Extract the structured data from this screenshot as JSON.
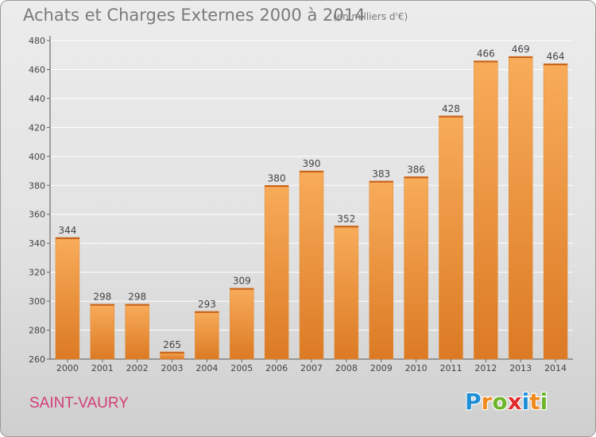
{
  "header": {
    "title": "Achats et Charges Externes 2000 à 2014",
    "unit": "(en milliers d'€)"
  },
  "footer": {
    "commune": "SAINT-VAURY",
    "logo_letters": [
      "P",
      "r",
      "o",
      "x",
      "i",
      "t",
      "i"
    ],
    "logo_colors": [
      "#1e8fd6",
      "#f08a1c",
      "#6fb52c",
      "#e02d2d",
      "#1e8fd6",
      "#f08a1c",
      "#6fb52c"
    ]
  },
  "colors": {
    "bar_light": "#f8ac5a",
    "bar_dark": "#dc7a24",
    "axis_text": "#444444",
    "grid": "#ffffff",
    "commune": "#d23d75"
  },
  "chart_data": {
    "type": "bar",
    "categories": [
      "2000",
      "2001",
      "2002",
      "2003",
      "2004",
      "2005",
      "2006",
      "2007",
      "2008",
      "2009",
      "2010",
      "2011",
      "2012",
      "2013",
      "2014"
    ],
    "values": [
      344,
      298,
      298,
      265,
      293,
      309,
      380,
      390,
      352,
      383,
      386,
      428,
      466,
      469,
      464
    ],
    "data_labels": [
      "344",
      "298",
      "298",
      "265",
      "293",
      "309",
      "380",
      "390",
      "352",
      "383",
      "386",
      "428",
      "466",
      "469",
      "464"
    ],
    "title": "Achats et Charges Externes 2000 à 2014",
    "xlabel": "",
    "ylabel": "",
    "ylim": [
      260,
      480
    ],
    "yticks": [
      260,
      280,
      300,
      320,
      340,
      360,
      380,
      400,
      420,
      440,
      460,
      480
    ],
    "ytick_labels": [
      "260",
      "280",
      "300",
      "320",
      "340",
      "360",
      "380",
      "400",
      "420",
      "440",
      "460",
      "480"
    ],
    "grid": true,
    "legend": "none"
  }
}
